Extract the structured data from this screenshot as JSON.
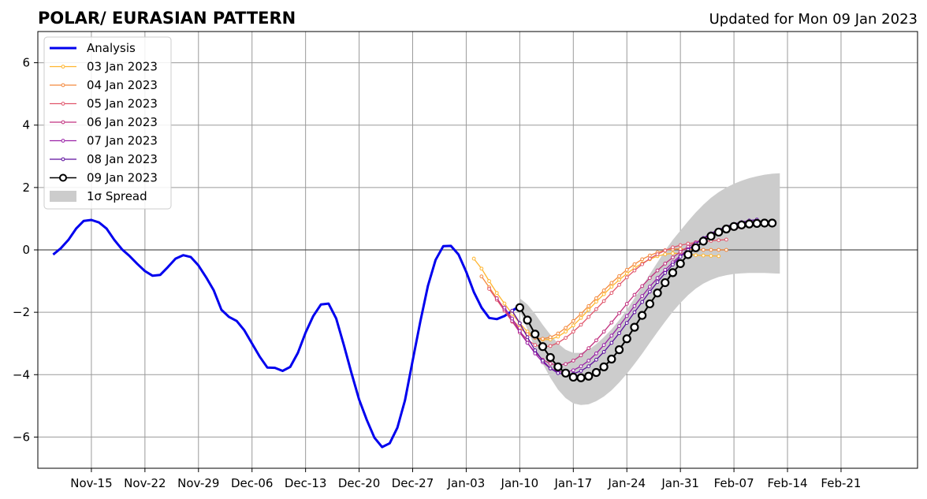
{
  "chart_data": {
    "type": "line",
    "title": "POLAR/ EURASIAN  PATTERN",
    "subtitle": "Updated for Mon 09 Jan 2023",
    "xlabel": "",
    "ylabel": "",
    "x_axis": "days from 2022-11-15 (tick labels printed as dates)",
    "xlim": [
      -7,
      108
    ],
    "ylim": [
      -7,
      7
    ],
    "x_ticks": [
      {
        "x": 0,
        "label": "Nov-15"
      },
      {
        "x": 7,
        "label": "Nov-22"
      },
      {
        "x": 14,
        "label": "Nov-29"
      },
      {
        "x": 21,
        "label": "Dec-06"
      },
      {
        "x": 28,
        "label": "Dec-13"
      },
      {
        "x": 35,
        "label": "Dec-20"
      },
      {
        "x": 42,
        "label": "Dec-27"
      },
      {
        "x": 49,
        "label": "Jan-03"
      },
      {
        "x": 56,
        "label": "Jan-10"
      },
      {
        "x": 63,
        "label": "Jan-17"
      },
      {
        "x": 70,
        "label": "Jan-24"
      },
      {
        "x": 77,
        "label": "Jan-31"
      },
      {
        "x": 84,
        "label": "Feb-07"
      },
      {
        "x": 91,
        "label": "Feb-14"
      },
      {
        "x": 98,
        "label": "Feb-21"
      }
    ],
    "y_ticks": [
      {
        "y": -6,
        "label": "−6"
      },
      {
        "y": -4,
        "label": "−4"
      },
      {
        "y": -2,
        "label": "−2"
      },
      {
        "y": 0,
        "label": "0"
      },
      {
        "y": 2,
        "label": "2"
      },
      {
        "y": 4,
        "label": "4"
      },
      {
        "y": 6,
        "label": "6"
      }
    ],
    "grid": true,
    "legend_position": "top-left",
    "analysis": {
      "name": "Analysis",
      "color": "#0000ee",
      "x": [
        -5,
        -4,
        -3,
        -2,
        -1,
        0,
        1,
        2,
        3,
        4,
        5,
        6,
        7,
        8,
        9,
        10,
        11,
        12,
        13,
        14,
        15,
        16,
        17,
        18,
        19,
        20,
        21,
        22,
        23,
        24,
        25,
        26,
        27,
        28,
        29,
        30,
        31,
        32,
        33,
        34,
        35,
        36,
        37,
        38,
        39,
        40,
        41,
        42,
        43,
        44,
        45,
        46,
        47,
        48,
        49,
        50,
        51,
        52,
        53,
        54,
        55,
        56
      ],
      "y": [
        -0.15,
        0.05,
        0.32,
        0.68,
        0.93,
        0.96,
        0.88,
        0.68,
        0.32,
        0.02,
        -0.2,
        -0.45,
        -0.68,
        -0.83,
        -0.8,
        -0.55,
        -0.28,
        -0.17,
        -0.23,
        -0.5,
        -0.88,
        -1.3,
        -1.92,
        -2.15,
        -2.28,
        -2.58,
        -3.0,
        -3.42,
        -3.77,
        -3.78,
        -3.88,
        -3.75,
        -3.3,
        -2.65,
        -2.12,
        -1.75,
        -1.72,
        -2.2,
        -3.05,
        -3.95,
        -4.8,
        -5.45,
        -6.02,
        -6.32,
        -6.2,
        -5.7,
        -4.82,
        -3.55,
        -2.3,
        -1.15,
        -0.32,
        0.12,
        0.13,
        -0.15,
        -0.7,
        -1.35,
        -1.85,
        -2.18,
        -2.22,
        -2.12,
        -1.95,
        -1.8
      ]
    },
    "forecasts": [
      {
        "name": "03 Jan 2023",
        "color": "#ffb52e",
        "x0": 50,
        "y": [
          -0.28,
          -0.6,
          -1.0,
          -1.38,
          -1.72,
          -2.05,
          -2.35,
          -2.62,
          -2.8,
          -2.88,
          -2.87,
          -2.78,
          -2.62,
          -2.42,
          -2.18,
          -1.92,
          -1.66,
          -1.42,
          -1.18,
          -0.96,
          -0.76,
          -0.58,
          -0.43,
          -0.3,
          -0.2,
          -0.14,
          -0.11,
          -0.11,
          -0.14,
          -0.17,
          -0.18,
          -0.19,
          -0.2
        ]
      },
      {
        "name": "04 Jan 2023",
        "color": "#f4893d",
        "x0": 51,
        "y": [
          -0.85,
          -1.2,
          -1.55,
          -1.9,
          -2.22,
          -2.5,
          -2.7,
          -2.82,
          -2.85,
          -2.8,
          -2.68,
          -2.5,
          -2.28,
          -2.05,
          -1.8,
          -1.55,
          -1.3,
          -1.06,
          -0.84,
          -0.64,
          -0.46,
          -0.3,
          -0.18,
          -0.08,
          -0.01,
          0.02,
          0.03,
          0.02,
          0.01,
          0.0,
          0.0,
          0.0,
          0.0
        ]
      },
      {
        "name": "05 Jan 2023",
        "color": "#e0556b",
        "x0": 52,
        "y": [
          -1.25,
          -1.6,
          -1.95,
          -2.3,
          -2.62,
          -2.88,
          -3.05,
          -3.12,
          -3.08,
          -2.98,
          -2.82,
          -2.62,
          -2.4,
          -2.15,
          -1.9,
          -1.64,
          -1.38,
          -1.12,
          -0.88,
          -0.66,
          -0.46,
          -0.28,
          -0.14,
          -0.02,
          0.08,
          0.15,
          0.2,
          0.24,
          0.27,
          0.29,
          0.31,
          0.33
        ]
      },
      {
        "name": "06 Jan 2023",
        "color": "#c1317f",
        "x0": 53,
        "y": [
          -1.55,
          -1.9,
          -2.28,
          -2.65,
          -2.98,
          -3.28,
          -3.52,
          -3.65,
          -3.7,
          -3.66,
          -3.55,
          -3.38,
          -3.15,
          -2.9,
          -2.62,
          -2.33,
          -2.03,
          -1.73,
          -1.44,
          -1.16,
          -0.9,
          -0.66,
          -0.44,
          -0.24,
          -0.06,
          0.1,
          0.24,
          0.36,
          0.46,
          0.54,
          0.62,
          0.68,
          0.72
        ]
      },
      {
        "name": "07 Jan 2023",
        "color": "#9a21a7",
        "x0": 54,
        "y": [
          -1.85,
          -2.2,
          -2.6,
          -2.98,
          -3.32,
          -3.6,
          -3.8,
          -3.9,
          -3.92,
          -3.86,
          -3.73,
          -3.55,
          -3.32,
          -3.05,
          -2.75,
          -2.44,
          -2.12,
          -1.8,
          -1.48,
          -1.18,
          -0.9,
          -0.64,
          -0.4,
          -0.18,
          0.02,
          0.2,
          0.36,
          0.5,
          0.62,
          0.72,
          0.8,
          0.86,
          0.9
        ]
      },
      {
        "name": "08 Jan 2023",
        "color": "#5d0f9e",
        "x0": 55,
        "y": [
          -1.95,
          -2.35,
          -2.8,
          -3.22,
          -3.55,
          -3.8,
          -3.95,
          -4.0,
          -3.97,
          -3.88,
          -3.73,
          -3.52,
          -3.27,
          -2.98,
          -2.67,
          -2.34,
          -2.0,
          -1.67,
          -1.34,
          -1.03,
          -0.74,
          -0.47,
          -0.22,
          0.0,
          0.2,
          0.38,
          0.53,
          0.65,
          0.75,
          0.83,
          0.89,
          0.94,
          0.97
        ]
      },
      {
        "name": "09 Jan 2023",
        "color": "#000000",
        "x0": 56,
        "y": [
          -1.85,
          -2.25,
          -2.7,
          -3.1,
          -3.45,
          -3.75,
          -3.95,
          -4.08,
          -4.1,
          -4.05,
          -3.93,
          -3.75,
          -3.5,
          -3.2,
          -2.85,
          -2.48,
          -2.1,
          -1.73,
          -1.38,
          -1.05,
          -0.73,
          -0.44,
          -0.15,
          0.07,
          0.28,
          0.44,
          0.57,
          0.67,
          0.75,
          0.8,
          0.83,
          0.85,
          0.86,
          0.86
        ]
      }
    ],
    "spread": {
      "name": "1σ Spread",
      "color": "#cccccc",
      "x0": 56,
      "upper": [
        -1.55,
        -1.75,
        -2.05,
        -2.4,
        -2.72,
        -3.0,
        -3.2,
        -3.3,
        -3.3,
        -3.2,
        -3.02,
        -2.8,
        -2.55,
        -2.25,
        -1.92,
        -1.55,
        -1.18,
        -0.78,
        -0.4,
        -0.02,
        0.32,
        0.62,
        0.92,
        1.2,
        1.45,
        1.67,
        1.85,
        2.0,
        2.12,
        2.22,
        2.3,
        2.36,
        2.41,
        2.44,
        2.46
      ],
      "lower": [
        -1.95,
        -2.55,
        -3.15,
        -3.65,
        -4.1,
        -4.48,
        -4.75,
        -4.92,
        -4.97,
        -4.95,
        -4.85,
        -4.7,
        -4.5,
        -4.25,
        -3.97,
        -3.66,
        -3.33,
        -2.98,
        -2.63,
        -2.3,
        -1.98,
        -1.7,
        -1.45,
        -1.24,
        -1.08,
        -0.96,
        -0.87,
        -0.81,
        -0.77,
        -0.75,
        -0.74,
        -0.74,
        -0.74,
        -0.75,
        -0.76
      ]
    }
  }
}
